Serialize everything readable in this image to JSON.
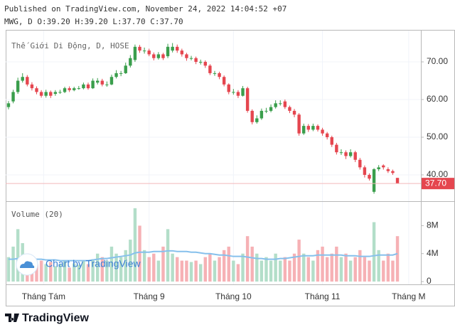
{
  "published": "Published on TradingView.com, November 24, 2022 14:04:52 +07",
  "watermark": "Chart by TradingView",
  "brand": "TradingView",
  "chart_data": [
    {
      "type": "candlestick",
      "title": "Thế Giới Di Động, D, HOSE",
      "legend": "MWG, D O:39.20 H:39.20 L:37.70 C:37.70",
      "xlim": [
        -0.6,
        88
      ],
      "xticks": [
        {
          "value": 7.5,
          "label": "Tháng Tám"
        },
        {
          "value": 30,
          "label": "Tháng 9"
        },
        {
          "value": 48,
          "label": "Tháng 10"
        },
        {
          "value": 67,
          "label": "Tháng 11"
        },
        {
          "value": 85.4,
          "label": "Tháng M"
        }
      ],
      "ylim": [
        33.2,
        78.5
      ],
      "yticks": [
        {
          "value": 40,
          "label": "40.00"
        },
        {
          "value": 50,
          "label": "50.00"
        },
        {
          "value": 60,
          "label": "60.00"
        },
        {
          "value": 70,
          "label": "70.00"
        }
      ],
      "grid": true,
      "up_color": "#3a9e4c",
      "down_color": "#e5464f",
      "last_label": "37.70",
      "open": [
        58,
        59.5,
        62,
        65,
        66,
        64,
        63,
        62,
        61,
        62,
        61.5,
        62,
        62,
        63,
        62.5,
        63,
        63,
        64,
        63,
        64.5,
        65,
        64,
        64,
        66,
        67,
        67,
        69,
        70.5,
        74,
        73,
        73,
        72,
        71,
        72,
        71.5,
        73,
        74,
        73,
        72,
        71,
        71,
        70,
        70,
        69,
        67,
        67,
        66,
        64,
        62,
        62,
        61,
        63,
        57,
        54,
        55,
        57,
        57,
        58,
        59,
        59.5,
        58,
        57,
        56,
        51,
        53,
        52,
        53,
        52,
        51,
        50,
        48,
        46,
        46,
        45,
        46,
        44,
        42,
        40,
        35.5,
        41.5,
        42.5,
        41.5,
        41,
        39.2
      ],
      "high": [
        59.6,
        62.6,
        65.8,
        67,
        66.5,
        64.6,
        63.5,
        62.5,
        62.6,
        62.4,
        62.5,
        62.6,
        63.4,
        63.5,
        63.4,
        63.6,
        64.5,
        64.5,
        65.6,
        65.7,
        65.5,
        64.8,
        66.6,
        67.8,
        67.6,
        69.8,
        71.8,
        74.6,
        74.5,
        73.8,
        73.5,
        72.5,
        72.6,
        72.4,
        74.8,
        75,
        74.6,
        73.5,
        72.4,
        71.6,
        71.4,
        70.6,
        70.4,
        69.4,
        67.6,
        67.4,
        66.4,
        64.3,
        62.8,
        62.5,
        63.6,
        63.4,
        57.4,
        55.8,
        57.6,
        57.8,
        58.7,
        59.8,
        59.8,
        60,
        58.4,
        57.5,
        56.4,
        53.6,
        53.5,
        53.6,
        53.4,
        52.5,
        51.4,
        50.4,
        48.5,
        46.8,
        46.5,
        46.8,
        46.4,
        44.5,
        42.5,
        40.4,
        41.8,
        42.6,
        42.8,
        42,
        41.4,
        39.2
      ],
      "low": [
        57.4,
        59,
        61.5,
        64.5,
        63.5,
        62.4,
        61.4,
        60.5,
        60.5,
        60.4,
        61,
        61.5,
        61.7,
        62,
        62.2,
        62.6,
        62.7,
        62.6,
        62.8,
        64,
        63.5,
        63.4,
        63.8,
        65.6,
        66.2,
        66.8,
        68.5,
        70,
        72.4,
        72.2,
        71.5,
        70.4,
        70.6,
        70.5,
        71,
        72.5,
        72.4,
        71.4,
        70.3,
        70.4,
        69.4,
        69.3,
        68.4,
        66.5,
        66.3,
        65.4,
        63.5,
        61.4,
        61.3,
        60.4,
        60.8,
        56.5,
        53.4,
        53.6,
        54.6,
        56.4,
        56.6,
        57.6,
        58.4,
        57.5,
        56.4,
        55.3,
        50.4,
        50.6,
        51.4,
        51.6,
        51.5,
        50.4,
        49.4,
        47.4,
        45.4,
        45.3,
        44.2,
        44.6,
        43.4,
        41.4,
        39.3,
        38.5,
        35,
        41,
        41.4,
        40.5,
        40,
        37.7
      ],
      "close": [
        59,
        62,
        65,
        66,
        64,
        63,
        62,
        61,
        62,
        61,
        62,
        62,
        63,
        62.5,
        63,
        63,
        64,
        63,
        65,
        65,
        64,
        64,
        66,
        67,
        67,
        69,
        71,
        74,
        73,
        73,
        72,
        71,
        72,
        71,
        74,
        74,
        73,
        72,
        71,
        71,
        70,
        70,
        69,
        67,
        67,
        66,
        64,
        62,
        62,
        61,
        63,
        57,
        54,
        55,
        57,
        57,
        58,
        59,
        59,
        58,
        57,
        56,
        51,
        53,
        52,
        53,
        52,
        51,
        50,
        48,
        46,
        46,
        45,
        46,
        44,
        42,
        40,
        39,
        41.5,
        42,
        42,
        41,
        40.5,
        37.7
      ]
    },
    {
      "type": "bar",
      "title": "Volume (20)",
      "ylim": [
        -0.4,
        11.4
      ],
      "yticks": [
        0,
        {
          "value": 4,
          "label": "4M"
        },
        {
          "value": 8,
          "label": "8M"
        }
      ],
      "up_color": "#b3dec9",
      "down_color": "#f6b1b5",
      "ma_color": "#86c0ec",
      "values": [
        3.5,
        5,
        7.5,
        5.5,
        4,
        3,
        2.5,
        3,
        2.5,
        2.8,
        2.2,
        2.5,
        3,
        2,
        2.6,
        2.4,
        3,
        2.5,
        3.2,
        4,
        3.5,
        3,
        5,
        4,
        3.5,
        4.5,
        6,
        10.5,
        8,
        4.5,
        3.5,
        4,
        3,
        5,
        7.5,
        4,
        3.5,
        3,
        3,
        2.8,
        3,
        2.5,
        3.5,
        4,
        3,
        3.5,
        4.5,
        5,
        3,
        2.5,
        4,
        6.5,
        5,
        4,
        3,
        3.5,
        3,
        4,
        3,
        3.5,
        3,
        4,
        6,
        4,
        3.5,
        3,
        4.5,
        5,
        3.5,
        4,
        5,
        3.5,
        4,
        3,
        3.5,
        4.5,
        3.5,
        3,
        8.5,
        4.5,
        3,
        4,
        3,
        6.5
      ],
      "ma_values": [
        3.2,
        3.2,
        3.3,
        3.3,
        3.3,
        3.3,
        3.2,
        3.2,
        3.1,
        3.1,
        3.1,
        3.0,
        3.0,
        3.0,
        3.0,
        3.0,
        3.0,
        3.0,
        3.1,
        3.2,
        3.3,
        3.3,
        3.4,
        3.5,
        3.6,
        3.7,
        3.8,
        4.1,
        4.2,
        4.2,
        4.2,
        4.3,
        4.3,
        4.3,
        4.4,
        4.4,
        4.3,
        4.3,
        4.3,
        4.2,
        4.2,
        4.1,
        4.0,
        4.0,
        3.9,
        3.8,
        3.8,
        3.7,
        3.6,
        3.6,
        3.6,
        3.5,
        3.4,
        3.3,
        3.3,
        3.2,
        3.2,
        3.2,
        3.3,
        3.3,
        3.4,
        3.5,
        3.6,
        3.7,
        3.7,
        3.7,
        3.8,
        3.8,
        3.8,
        3.8,
        3.8,
        3.8,
        3.7,
        3.7,
        3.7,
        3.6,
        3.6,
        3.6,
        3.7,
        3.8,
        3.8,
        3.8,
        3.8,
        4.0
      ]
    }
  ]
}
